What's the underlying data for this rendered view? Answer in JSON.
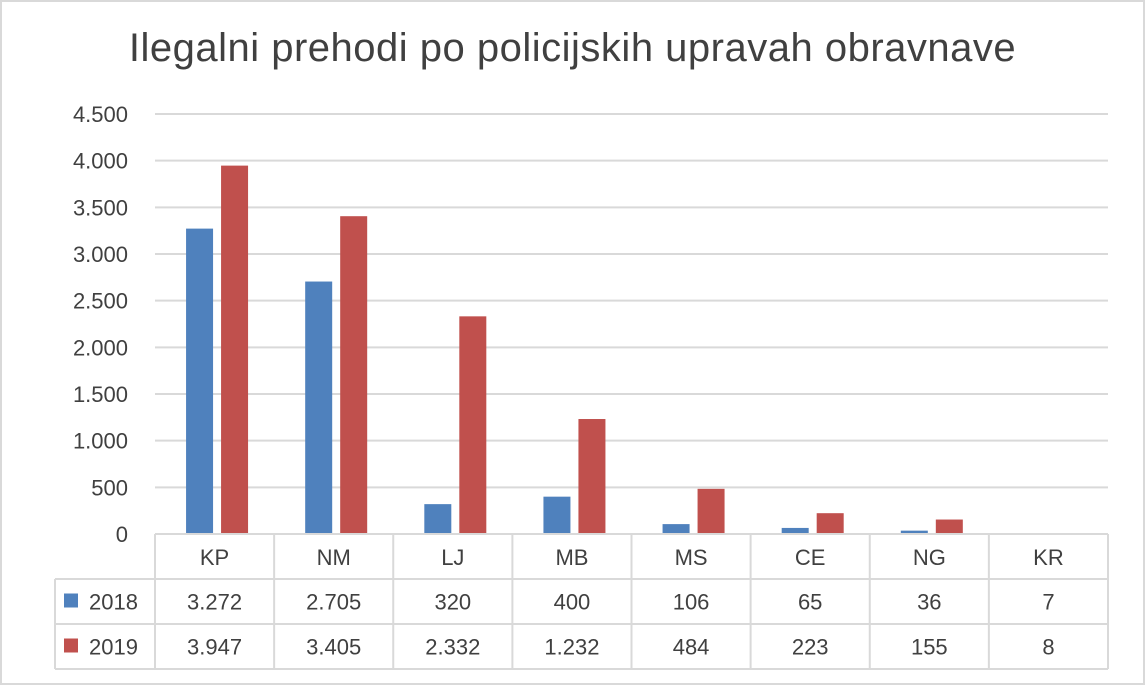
{
  "chart_data": {
    "type": "bar",
    "title": "Ilegalni prehodi po policijskih upravah obravnave",
    "categories": [
      "KP",
      "NM",
      "LJ",
      "MB",
      "MS",
      "CE",
      "NG",
      "KR"
    ],
    "series": [
      {
        "name": "2018",
        "color": "#4f81bd",
        "values": [
          3272,
          2705,
          320,
          400,
          106,
          65,
          36,
          7
        ],
        "value_labels": [
          "3.272",
          "2.705",
          "320",
          "400",
          "106",
          "65",
          "36",
          "7"
        ]
      },
      {
        "name": "2019",
        "color": "#c0504d",
        "values": [
          3947,
          3405,
          2332,
          1232,
          484,
          223,
          155,
          8
        ],
        "value_labels": [
          "3.947",
          "3.405",
          "2.332",
          "1.232",
          "484",
          "223",
          "155",
          "8"
        ]
      }
    ],
    "ylim": [
      0,
      4500
    ],
    "ytick_values": [
      0,
      500,
      1000,
      1500,
      2000,
      2500,
      3000,
      3500,
      4000,
      4500
    ],
    "ytick_labels": [
      "0",
      "500",
      "1.000",
      "1.500",
      "2.000",
      "2.500",
      "3.000",
      "3.500",
      "4.000",
      "4.500"
    ],
    "grid": true,
    "legend": "data-table",
    "xlabel": "",
    "ylabel": ""
  }
}
